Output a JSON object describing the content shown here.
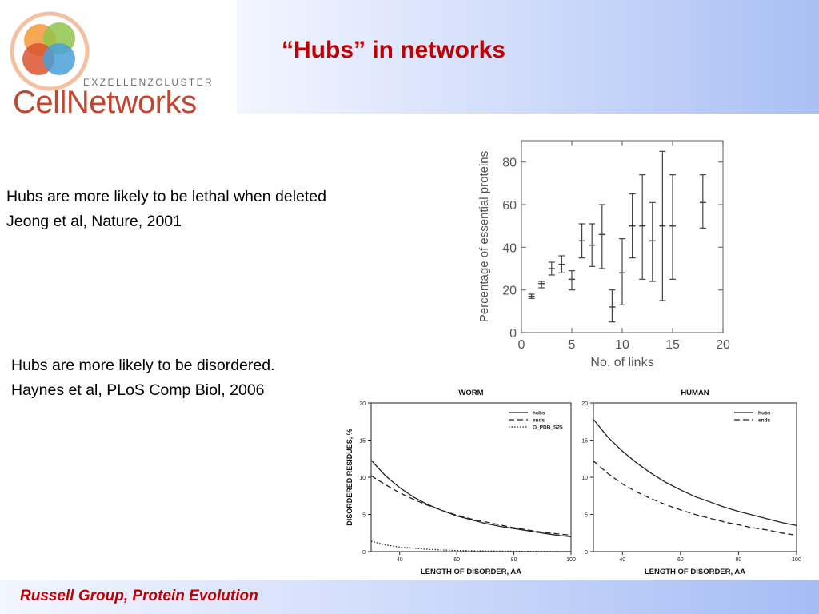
{
  "header": {
    "logo_subtitle": "EXZELLENZCLUSTER",
    "logo_name": "CellNetworks",
    "title": "“Hubs” in networks"
  },
  "body": {
    "text1_line1": "Hubs are more likely to be lethal when deleted",
    "text1_line2": "Jeong et al, Nature, 2001",
    "text2_line1": "Hubs are more likely to be disordered.",
    "text2_line2": "Haynes et al, PLoS Comp Biol, 2006"
  },
  "footer": {
    "text": "Russell Group, Protein Evolution"
  },
  "colors": {
    "title_red": "#c00000",
    "logo_orange": "#c0472f",
    "header_blue": "#a9bff4"
  },
  "chart_data": [
    {
      "type": "scatter",
      "title": "",
      "xlabel": "No. of links",
      "ylabel": "Percentage of essential proteins",
      "xlim": [
        0,
        20
      ],
      "ylim": [
        0,
        90
      ],
      "xticks": [
        0,
        5,
        10,
        15,
        20
      ],
      "yticks": [
        0,
        20,
        40,
        60,
        80
      ],
      "error_bars": true,
      "points": [
        {
          "x": 1,
          "y": 17,
          "lo": 16,
          "hi": 18
        },
        {
          "x": 2,
          "y": 23,
          "lo": 21,
          "hi": 24
        },
        {
          "x": 3,
          "y": 30,
          "lo": 27,
          "hi": 33
        },
        {
          "x": 4,
          "y": 32,
          "lo": 28,
          "hi": 36
        },
        {
          "x": 5,
          "y": 25,
          "lo": 20,
          "hi": 29
        },
        {
          "x": 6,
          "y": 43,
          "lo": 35,
          "hi": 51
        },
        {
          "x": 7,
          "y": 41,
          "lo": 31,
          "hi": 51
        },
        {
          "x": 8,
          "y": 46,
          "lo": 30,
          "hi": 60
        },
        {
          "x": 9,
          "y": 12,
          "lo": 5,
          "hi": 20
        },
        {
          "x": 10,
          "y": 28,
          "lo": 13,
          "hi": 44
        },
        {
          "x": 11,
          "y": 50,
          "lo": 35,
          "hi": 65
        },
        {
          "x": 12,
          "y": 50,
          "lo": 25,
          "hi": 74
        },
        {
          "x": 13,
          "y": 43,
          "lo": 24,
          "hi": 61
        },
        {
          "x": 14,
          "y": 50,
          "lo": 15,
          "hi": 85
        },
        {
          "x": 15,
          "y": 50,
          "lo": 25,
          "hi": 74
        },
        {
          "x": 18,
          "y": 61,
          "lo": 49,
          "hi": 74
        }
      ]
    },
    {
      "type": "line",
      "title": "WORM",
      "xlabel": "LENGTH OF DISORDER, AA",
      "ylabel": "DISORDERED RESIDUES, %",
      "xlim": [
        30,
        100
      ],
      "ylim": [
        0,
        20
      ],
      "xticks": [
        40,
        60,
        80,
        100
      ],
      "yticks": [
        0,
        5,
        10,
        15,
        20
      ],
      "legend_position": "top-right",
      "x": [
        30,
        35,
        40,
        45,
        50,
        55,
        60,
        65,
        70,
        75,
        80,
        85,
        90,
        95,
        100
      ],
      "series": [
        {
          "name": "hubs",
          "style": "solid",
          "values": [
            12.3,
            10.2,
            8.6,
            7.3,
            6.3,
            5.5,
            4.8,
            4.3,
            3.8,
            3.4,
            3.1,
            2.8,
            2.5,
            2.2,
            2.0
          ]
        },
        {
          "name": "ends",
          "style": "dashed",
          "values": [
            10.2,
            9.0,
            7.9,
            7.0,
            6.2,
            5.5,
            4.9,
            4.4,
            4.0,
            3.6,
            3.2,
            2.9,
            2.6,
            2.4,
            2.2
          ]
        },
        {
          "name": "O_PDB_S25",
          "style": "dotted",
          "values": [
            1.4,
            0.9,
            0.6,
            0.45,
            0.3,
            0.22,
            0.16,
            0.12,
            0.09,
            0.07,
            0.05,
            0.04,
            0.03,
            0.02,
            0.02
          ]
        }
      ]
    },
    {
      "type": "line",
      "title": "HUMAN",
      "xlabel": "LENGTH OF DISORDER, AA",
      "ylabel": "",
      "xlim": [
        30,
        100
      ],
      "ylim": [
        0,
        20
      ],
      "xticks": [
        40,
        60,
        80,
        100
      ],
      "yticks": [
        0,
        5,
        10,
        15,
        20
      ],
      "legend_position": "top-right",
      "x": [
        30,
        35,
        40,
        45,
        50,
        55,
        60,
        65,
        70,
        75,
        80,
        85,
        90,
        95,
        100
      ],
      "series": [
        {
          "name": "hubs",
          "style": "solid",
          "values": [
            17.8,
            15.4,
            13.5,
            11.9,
            10.5,
            9.3,
            8.3,
            7.4,
            6.7,
            6.0,
            5.4,
            4.9,
            4.4,
            3.9,
            3.5
          ]
        },
        {
          "name": "ends",
          "style": "dashed",
          "values": [
            12.2,
            10.5,
            9.1,
            8.0,
            7.1,
            6.3,
            5.6,
            5.0,
            4.5,
            4.0,
            3.6,
            3.2,
            2.9,
            2.5,
            2.2
          ]
        }
      ]
    }
  ]
}
